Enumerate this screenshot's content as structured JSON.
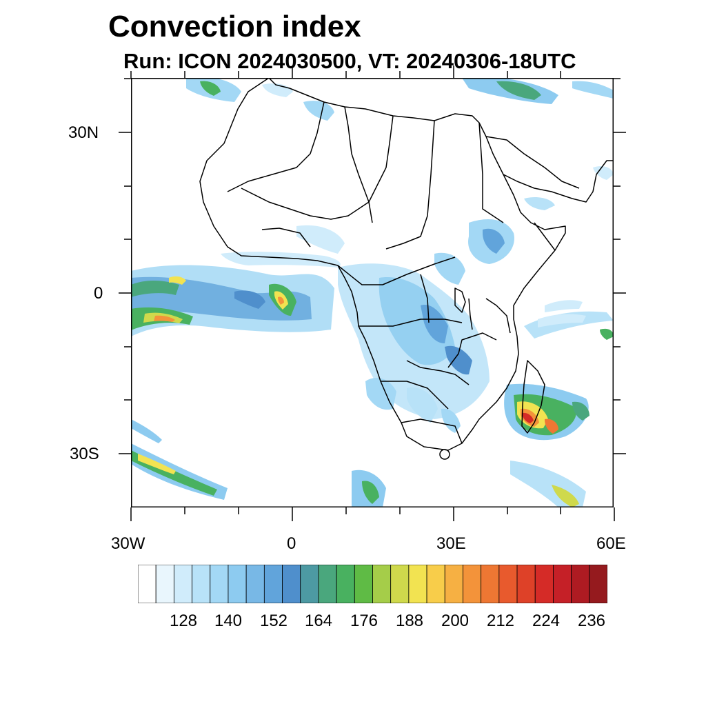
{
  "title": "Convection index",
  "subtitle": "Run: ICON 2024030500,  VT: 20240306-18UTC",
  "map": {
    "lat_labels": [
      "30N",
      "0",
      "30S"
    ],
    "lon_labels": [
      "30W",
      "0",
      "30E",
      "60E"
    ],
    "extent": {
      "lon_min": -30,
      "lon_max": 60,
      "lat_min": -40,
      "lat_max": 40
    }
  },
  "colorbar": {
    "colors": [
      "#ffffff",
      "#e9f6fd",
      "#d0ecfb",
      "#b8e2f8",
      "#a3d8f5",
      "#8dcbf0",
      "#78b8e6",
      "#61a4db",
      "#4f8fcc",
      "#4d9aa3",
      "#4aa77d",
      "#49b160",
      "#5fbb45",
      "#a5cd49",
      "#cfd94c",
      "#f2e351",
      "#f8cd4a",
      "#f6b043",
      "#f3933a",
      "#ee7733",
      "#e85a2d",
      "#de4128",
      "#d52b27",
      "#c52027",
      "#ae1b22",
      "#951a1e"
    ],
    "labels": [
      "128",
      "140",
      "152",
      "164",
      "176",
      "188",
      "200",
      "212",
      "224",
      "236"
    ]
  }
}
